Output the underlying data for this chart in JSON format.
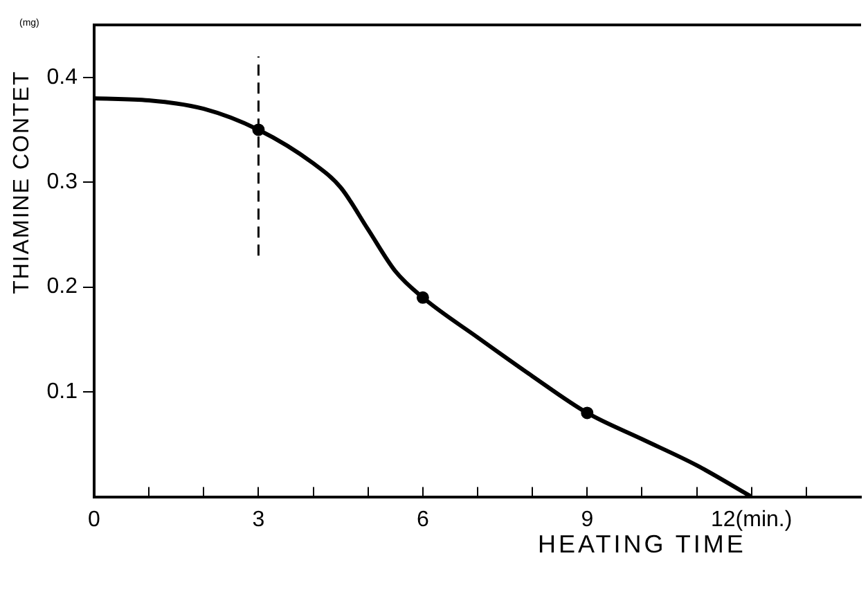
{
  "chart_data": {
    "type": "line",
    "xlabel": "HEATING TIME",
    "ylabel": "THIAMINE CONTET",
    "annotations": [
      "(mg)"
    ],
    "xlim": [
      0,
      14
    ],
    "ylim": [
      0,
      0.45
    ],
    "xticks": [
      0,
      {
        "value": 1,
        "label": null
      },
      {
        "value": 2,
        "label": null
      },
      3,
      {
        "value": 4,
        "label": null
      },
      {
        "value": 5,
        "label": null
      },
      6,
      {
        "value": 7,
        "label": null
      },
      {
        "value": 8,
        "label": null
      },
      9,
      {
        "value": 10,
        "label": null
      },
      {
        "value": 11,
        "label": null
      },
      {
        "value": 12,
        "label": "12(min.)"
      },
      {
        "value": 13,
        "label": null
      }
    ],
    "yticks": [
      0.1,
      0.2,
      0.3,
      0.4
    ],
    "grid": false,
    "legend": false,
    "series": [
      {
        "color": "#000000",
        "marker": "none",
        "x": [
          0,
          1,
          2,
          3,
          4,
          4.5,
          5,
          5.5,
          6,
          7,
          8,
          9,
          10,
          11,
          12
        ],
        "values": [
          0.38,
          0.378,
          0.37,
          0.35,
          0.318,
          0.295,
          0.255,
          0.215,
          0.19,
          0.152,
          0.115,
          0.08,
          0.055,
          0.03,
          0.0
        ]
      },
      {
        "type": "scatter",
        "color": "#000000",
        "marker": "circle",
        "x": [
          3,
          6,
          9
        ],
        "values": [
          0.35,
          0.19,
          0.08
        ],
        "errors": [
          [
            0.23,
            0.42
          ],
          null,
          null
        ]
      }
    ]
  }
}
